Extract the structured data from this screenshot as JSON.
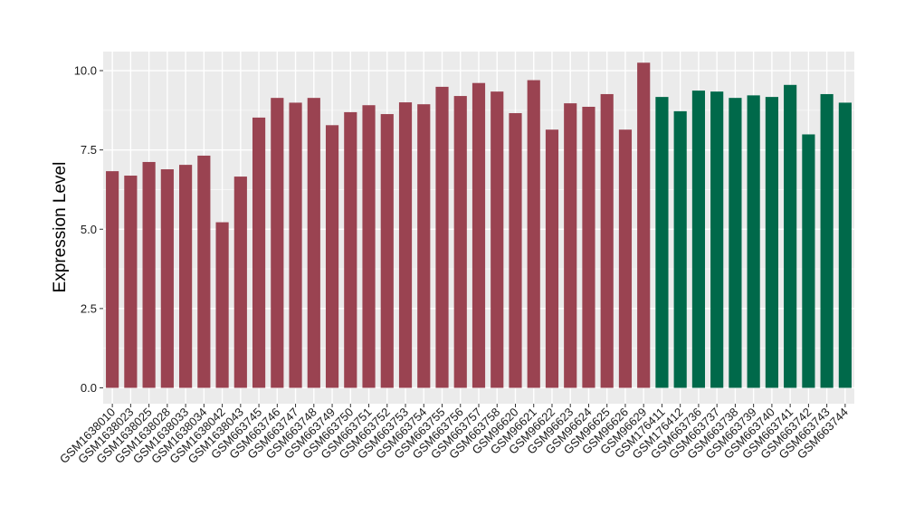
{
  "chart_data": {
    "type": "bar",
    "title": "",
    "xlabel": "",
    "ylabel": "Expression Level",
    "ylim": [
      -0.5,
      10.6
    ],
    "yticks": [
      0.0,
      2.5,
      5.0,
      7.5,
      10.0
    ],
    "ytick_labels": [
      "0.0",
      "2.5",
      "5.0",
      "7.5",
      "10.0"
    ],
    "grid": true,
    "background": "#ebebeb",
    "colors": {
      "group1": "#9a4351",
      "group2": "#00694a"
    },
    "categories": [
      "GSM1638010",
      "GSM1638023",
      "GSM1638025",
      "GSM1638028",
      "GSM1638033",
      "GSM1638034",
      "GSM1638042",
      "GSM1638043",
      "GSM663745",
      "GSM663746",
      "GSM663747",
      "GSM663748",
      "GSM663749",
      "GSM663750",
      "GSM663751",
      "GSM663752",
      "GSM663753",
      "GSM663754",
      "GSM663755",
      "GSM663756",
      "GSM663757",
      "GSM663758",
      "GSM96620",
      "GSM96621",
      "GSM96622",
      "GSM96623",
      "GSM96624",
      "GSM96625",
      "GSM96626",
      "GSM96629",
      "GSM176411",
      "GSM176412",
      "GSM663736",
      "GSM663737",
      "GSM663738",
      "GSM663739",
      "GSM663740",
      "GSM663741",
      "GSM663742",
      "GSM663743",
      "GSM663744"
    ],
    "values": [
      6.83,
      6.69,
      7.12,
      6.89,
      7.03,
      7.32,
      5.22,
      6.66,
      8.52,
      9.14,
      8.99,
      9.14,
      8.28,
      8.69,
      8.91,
      8.63,
      9.0,
      8.94,
      9.49,
      9.2,
      9.61,
      9.34,
      8.66,
      9.7,
      8.14,
      8.97,
      8.86,
      9.26,
      8.14,
      10.25,
      9.17,
      8.72,
      9.37,
      9.34,
      9.14,
      9.22,
      9.17,
      9.55,
      7.99,
      9.26,
      8.99
    ],
    "groups": [
      1,
      1,
      1,
      1,
      1,
      1,
      1,
      1,
      1,
      1,
      1,
      1,
      1,
      1,
      1,
      1,
      1,
      1,
      1,
      1,
      1,
      1,
      1,
      1,
      1,
      1,
      1,
      1,
      1,
      1,
      2,
      2,
      2,
      2,
      2,
      2,
      2,
      2,
      2,
      2,
      2
    ]
  }
}
